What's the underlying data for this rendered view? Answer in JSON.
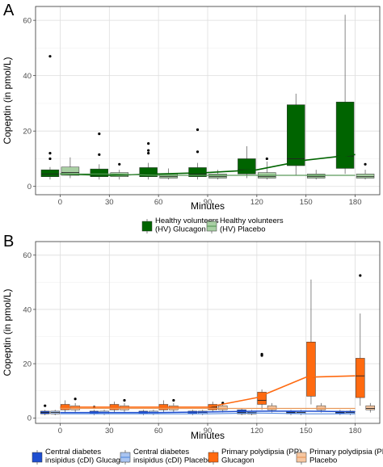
{
  "chart_data": [
    {
      "panel_label": "A",
      "type": "box",
      "xlabel": "Minutes",
      "ylabel": "Copeptin (in pmol/L)",
      "ylim": [
        -3,
        65
      ],
      "yticks": [
        0,
        20,
        40,
        60
      ],
      "categories": [
        "0",
        "30",
        "60",
        "90",
        "120",
        "150",
        "180"
      ],
      "grid": true,
      "legend_position": "bottom",
      "series": [
        {
          "name": "Healthy volunteers (HV) Glucagon",
          "legend_lines": [
            "Healthy volunteers",
            "(HV) Glucagon"
          ],
          "color": "#006400",
          "fill": "#006400",
          "whisker_color": "#555555",
          "line_width": 1.6,
          "boxes": [
            {
              "lo": 2.5,
              "q1": 3.5,
              "med": 4.5,
              "q3": 6.0,
              "hi": 7.0,
              "out": [
                47,
                12,
                10
              ]
            },
            {
              "lo": 2.5,
              "q1": 3.5,
              "med": 4.0,
              "q3": 6.3,
              "hi": 8.0,
              "out": [
                19,
                11.5
              ]
            },
            {
              "lo": 2.5,
              "q1": 3.5,
              "med": 4.5,
              "q3": 6.8,
              "hi": 8.5,
              "out": [
                15.5,
                13,
                12
              ]
            },
            {
              "lo": 2.5,
              "q1": 3.5,
              "med": 4.5,
              "q3": 6.8,
              "hi": 8.5,
              "out": [
                20.5,
                12.5
              ]
            },
            {
              "lo": 3.0,
              "q1": 4.5,
              "med": 6.0,
              "q3": 10.0,
              "hi": 14.5,
              "out": []
            },
            {
              "lo": 4.0,
              "q1": 7.5,
              "med": 10.0,
              "q3": 29.5,
              "hi": 33.5,
              "out": []
            },
            {
              "lo": 4.5,
              "q1": 6.5,
              "med": 11.0,
              "q3": 30.5,
              "hi": 62.0,
              "out": []
            }
          ],
          "mean_line": [
            4.5,
            4.0,
            4.5,
            5.0,
            6.0,
            9.5,
            11.5
          ]
        },
        {
          "name": "Healthy volunteers (HV) Placebo",
          "legend_lines": [
            "Healthy volunteers",
            "(HV) Placebo"
          ],
          "color": "#5a9a5a",
          "fill": "#a8cfa3",
          "whisker_color": "#555555",
          "line_width": 1.2,
          "boxes": [
            {
              "lo": 3.0,
              "q1": 4.0,
              "med": 5.0,
              "q3": 7.0,
              "hi": 10.5,
              "out": []
            },
            {
              "lo": 2.5,
              "q1": 3.5,
              "med": 4.0,
              "q3": 5.0,
              "hi": 6.0,
              "out": [
                8.0
              ]
            },
            {
              "lo": 2.5,
              "q1": 3.0,
              "med": 3.5,
              "q3": 4.5,
              "hi": 6.5,
              "out": []
            },
            {
              "lo": 2.5,
              "q1": 3.0,
              "med": 3.5,
              "q3": 4.5,
              "hi": 6.0,
              "out": []
            },
            {
              "lo": 2.5,
              "q1": 3.0,
              "med": 3.5,
              "q3": 5.0,
              "hi": 9.0,
              "out": [
                10.0
              ]
            },
            {
              "lo": 2.5,
              "q1": 3.0,
              "med": 3.5,
              "q3": 4.5,
              "hi": 6.0,
              "out": []
            },
            {
              "lo": 2.5,
              "q1": 3.0,
              "med": 3.5,
              "q3": 4.5,
              "hi": 6.0,
              "out": [
                8.0
              ]
            }
          ],
          "mean_line": [
            4.5,
            4.5,
            4.0,
            4.0,
            4.0,
            4.0,
            4.0
          ]
        }
      ]
    },
    {
      "panel_label": "B",
      "type": "box",
      "xlabel": "Minutes",
      "ylabel": "Copeptin (in pmol/L)",
      "ylim": [
        -2,
        65
      ],
      "yticks": [
        0,
        20,
        40,
        60
      ],
      "categories": [
        "0",
        "30",
        "60",
        "90",
        "120",
        "150",
        "180"
      ],
      "grid": true,
      "legend_position": "bottom",
      "series": [
        {
          "name": "Central diabetes insipidus (cDI) Glucagon",
          "legend_lines": [
            "Central diabetes",
            "insipidus (cDI) Glucagon"
          ],
          "color": "#1f4fd0",
          "fill": "#1f4fd0",
          "whisker_color": "#555555",
          "line_width": 1.5,
          "boxes": [
            {
              "lo": 1.0,
              "q1": 1.5,
              "med": 2.0,
              "q3": 2.5,
              "hi": 3.0,
              "out": [
                4.5
              ]
            },
            {
              "lo": 1.0,
              "q1": 1.5,
              "med": 2.0,
              "q3": 2.5,
              "hi": 3.0,
              "out": [
                4.0
              ]
            },
            {
              "lo": 1.0,
              "q1": 1.5,
              "med": 2.0,
              "q3": 2.5,
              "hi": 3.0,
              "out": []
            },
            {
              "lo": 1.0,
              "q1": 1.5,
              "med": 2.0,
              "q3": 2.5,
              "hi": 3.0,
              "out": []
            },
            {
              "lo": 1.0,
              "q1": 1.5,
              "med": 2.0,
              "q3": 3.0,
              "hi": 3.5,
              "out": []
            },
            {
              "lo": 1.0,
              "q1": 1.5,
              "med": 2.0,
              "q3": 2.5,
              "hi": 3.0,
              "out": []
            },
            {
              "lo": 1.0,
              "q1": 1.5,
              "med": 2.0,
              "q3": 2.5,
              "hi": 3.0,
              "out": []
            }
          ],
          "mean_line": [
            2.0,
            2.0,
            2.0,
            2.2,
            2.5,
            2.5,
            2.3
          ]
        },
        {
          "name": "Central diabetes insipidus (cDI) Placebo",
          "legend_lines": [
            "Central diabetes",
            "insipidus (cDI) Placebo"
          ],
          "color": "#5b8fe0",
          "fill": "#a9c4f0",
          "whisker_color": "#555555",
          "line_width": 1.2,
          "boxes": [
            {
              "lo": 1.0,
              "q1": 1.5,
              "med": 2.0,
              "q3": 2.5,
              "hi": 3.0,
              "out": []
            },
            {
              "lo": 1.0,
              "q1": 1.5,
              "med": 2.0,
              "q3": 2.5,
              "hi": 3.0,
              "out": []
            },
            {
              "lo": 1.0,
              "q1": 1.5,
              "med": 2.0,
              "q3": 2.5,
              "hi": 3.0,
              "out": []
            },
            {
              "lo": 1.0,
              "q1": 1.5,
              "med": 2.0,
              "q3": 2.5,
              "hi": 3.0,
              "out": []
            },
            {
              "lo": 1.0,
              "q1": 1.5,
              "med": 2.0,
              "q3": 2.5,
              "hi": 3.0,
              "out": []
            },
            {
              "lo": 1.0,
              "q1": 1.5,
              "med": 2.0,
              "q3": 2.5,
              "hi": 3.0,
              "out": []
            },
            {
              "lo": 1.0,
              "q1": 1.5,
              "med": 2.0,
              "q3": 2.5,
              "hi": 3.0,
              "out": []
            }
          ],
          "mean_line": [
            1.5,
            1.5,
            1.5,
            1.5,
            1.8,
            1.5,
            1.5
          ]
        },
        {
          "name": "Primary polydipsia (PP) Glucagon",
          "legend_lines": [
            "Primary polydipsia (PP)",
            "Glucagon"
          ],
          "color": "#ff6a10",
          "fill": "#ff6a10",
          "whisker_color": "#555555",
          "line_width": 1.6,
          "boxes": [
            {
              "lo": 2.0,
              "q1": 3.0,
              "med": 4.0,
              "q3": 5.0,
              "hi": 6.5,
              "out": []
            },
            {
              "lo": 2.0,
              "q1": 3.0,
              "med": 4.0,
              "q3": 5.0,
              "hi": 6.0,
              "out": []
            },
            {
              "lo": 2.0,
              "q1": 3.0,
              "med": 4.0,
              "q3": 5.0,
              "hi": 6.5,
              "out": []
            },
            {
              "lo": 2.0,
              "q1": 3.0,
              "med": 4.0,
              "q3": 5.0,
              "hi": 6.0,
              "out": []
            },
            {
              "lo": 3.0,
              "q1": 5.0,
              "med": 6.5,
              "q3": 9.5,
              "hi": 10.5,
              "out": [
                23.5,
                23.0
              ]
            },
            {
              "lo": 5.0,
              "q1": 8.0,
              "med": 15.0,
              "q3": 28.0,
              "hi": 51.0,
              "out": []
            },
            {
              "lo": 4.5,
              "q1": 7.5,
              "med": 15.5,
              "q3": 22.0,
              "hi": 38.5,
              "out": [
                52.5
              ]
            }
          ],
          "mean_line": [
            4.0,
            4.0,
            4.0,
            4.0,
            7.5,
            15.0,
            15.5
          ]
        },
        {
          "name": "Primary polydipsia (PP) Placebo",
          "legend_lines": [
            "Primary polydipsia (PP)",
            "Placebo"
          ],
          "color": "#e8985a",
          "fill": "#f6c6a0",
          "whisker_color": "#555555",
          "line_width": 1.2,
          "boxes": [
            {
              "lo": 2.0,
              "q1": 3.0,
              "med": 3.5,
              "q3": 4.5,
              "hi": 5.5,
              "out": [
                7.0
              ]
            },
            {
              "lo": 2.0,
              "q1": 3.0,
              "med": 3.5,
              "q3": 4.5,
              "hi": 5.5,
              "out": [
                6.5
              ]
            },
            {
              "lo": 2.0,
              "q1": 3.0,
              "med": 3.5,
              "q3": 4.5,
              "hi": 5.5,
              "out": [
                6.5
              ]
            },
            {
              "lo": 2.0,
              "q1": 3.0,
              "med": 3.5,
              "q3": 4.5,
              "hi": 5.5,
              "out": [
                5.5
              ]
            },
            {
              "lo": 2.0,
              "q1": 3.0,
              "med": 3.5,
              "q3": 4.5,
              "hi": 5.5,
              "out": []
            },
            {
              "lo": 2.0,
              "q1": 3.0,
              "med": 3.5,
              "q3": 4.5,
              "hi": 5.5,
              "out": []
            },
            {
              "lo": 2.0,
              "q1": 3.0,
              "med": 3.5,
              "q3": 4.5,
              "hi": 5.5,
              "out": []
            }
          ],
          "mean_line": [
            3.5,
            3.5,
            3.5,
            3.5,
            3.5,
            3.5,
            3.5
          ]
        }
      ]
    }
  ]
}
